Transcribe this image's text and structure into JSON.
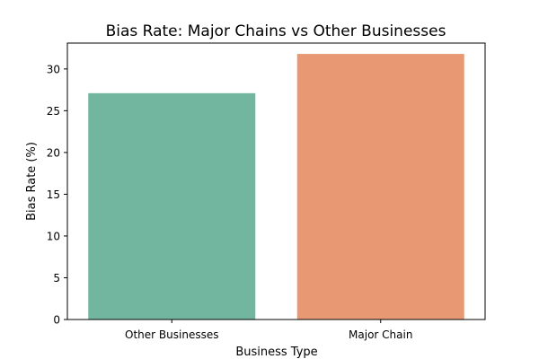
{
  "chart_data": {
    "type": "bar",
    "title": "Bias Rate: Major Chains vs Other Businesses",
    "xlabel": "Business Type",
    "ylabel": "Bias Rate (%)",
    "categories": [
      "Other Businesses",
      "Major Chain"
    ],
    "values": [
      27.1,
      31.8
    ],
    "colors": [
      "#73b6a0",
      "#e99874"
    ],
    "ylim": [
      0,
      33.1
    ],
    "yticks": [
      0,
      5,
      10,
      15,
      20,
      25,
      30
    ],
    "grid": false,
    "legend": "none"
  }
}
